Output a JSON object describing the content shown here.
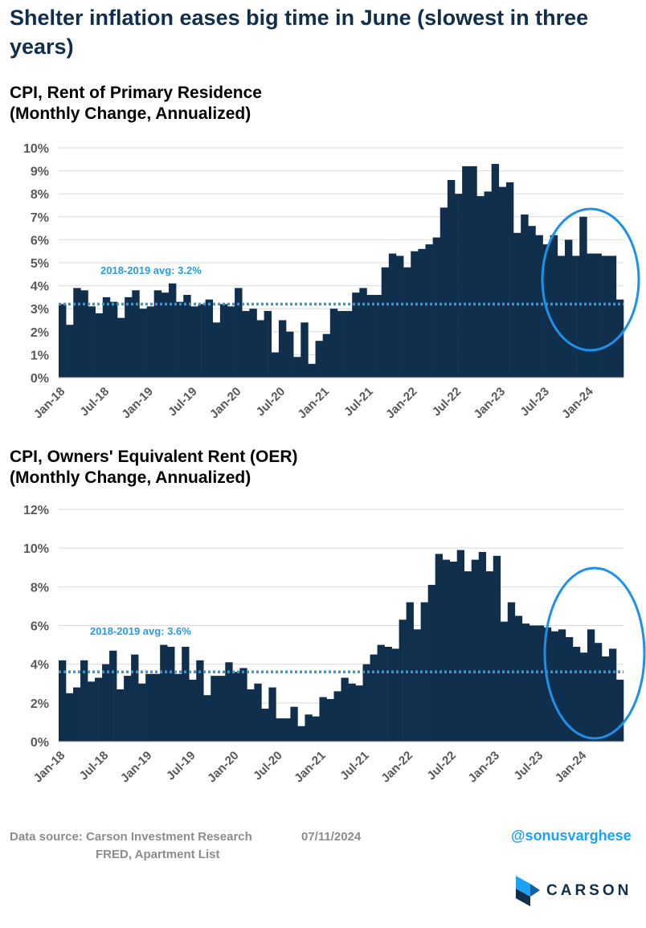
{
  "page": {
    "headline": "Shelter inflation eases big time in June (slowest in three years)",
    "source_label": "Data source: Carson Investment Research",
    "source_line2": "FRED, Apartment List",
    "date": "07/11/2024",
    "handle": "@sonusvarghese",
    "logo_text": "CARSON",
    "colors": {
      "bars": "#0f2f4d",
      "avg_line": "#2a9be0",
      "circle": "#1e90e8",
      "headline": "#0f2f4d"
    }
  },
  "chart_data": [
    {
      "type": "bar",
      "title_line1": "CPI, Rent of Primary Residence",
      "title_line2": "(Monthly Change, Annualized)",
      "ylim": [
        0,
        10
      ],
      "yticks": [
        0,
        1,
        2,
        3,
        4,
        5,
        6,
        7,
        8,
        9,
        10
      ],
      "ytick_labels": [
        "0%",
        "1%",
        "2%",
        "3%",
        "4%",
        "5%",
        "6%",
        "7%",
        "8%",
        "9%",
        "10%"
      ],
      "x_start": "Jan-18",
      "xtick_labels": [
        "Jan-18",
        "Jul-18",
        "Jan-19",
        "Jul-19",
        "Jan-20",
        "Jul-20",
        "Jan-21",
        "Jul-21",
        "Jan-22",
        "Jul-22",
        "Jan-23",
        "Jul-23",
        "Jan-24"
      ],
      "values": [
        3.2,
        2.3,
        3.9,
        3.8,
        3.1,
        2.8,
        3.5,
        3.3,
        2.6,
        3.5,
        3.8,
        3.0,
        3.1,
        3.8,
        3.7,
        4.1,
        3.3,
        3.6,
        3.1,
        3.2,
        3.4,
        2.4,
        3.2,
        3.1,
        3.9,
        2.9,
        3.0,
        2.5,
        2.9,
        1.1,
        2.5,
        2.0,
        0.9,
        2.4,
        0.6,
        1.6,
        1.9,
        3.0,
        2.9,
        2.9,
        3.7,
        3.9,
        3.6,
        3.6,
        4.8,
        5.4,
        5.3,
        4.8,
        5.5,
        5.6,
        5.8,
        6.1,
        7.4,
        8.6,
        8.0,
        9.2,
        9.2,
        7.9,
        8.1,
        9.3,
        8.3,
        8.5,
        6.3,
        7.1,
        6.6,
        6.2,
        5.8,
        6.2,
        5.3,
        6.0,
        5.3,
        7.0,
        5.4,
        5.4,
        5.3,
        5.3,
        3.4
      ],
      "avg": 3.2,
      "avg_label": "2018-2019 avg: 3.2%"
    },
    {
      "type": "bar",
      "title_line1": "CPI, Owners' Equivalent Rent (OER)",
      "title_line2": "(Monthly Change, Annualized)",
      "ylim": [
        0,
        12
      ],
      "yticks": [
        0,
        2,
        4,
        6,
        8,
        10,
        12
      ],
      "ytick_labels": [
        "0%",
        "2%",
        "4%",
        "6%",
        "8%",
        "10%",
        "12%"
      ],
      "x_start": "Jan-18",
      "xtick_labels": [
        "Jan-18",
        "Jul-18",
        "Jan-19",
        "Jul-19",
        "Jan-20",
        "Jul-20",
        "Jan-21",
        "Jul-21",
        "Jan-22",
        "Jul-22",
        "Jan-23",
        "Jul-23",
        "Jan-24"
      ],
      "values": [
        4.2,
        2.5,
        2.8,
        4.2,
        3.1,
        3.3,
        4.0,
        4.7,
        2.7,
        3.4,
        4.5,
        3.0,
        3.5,
        3.5,
        5.0,
        4.9,
        3.5,
        4.9,
        3.2,
        4.2,
        2.4,
        3.4,
        3.4,
        4.1,
        3.6,
        3.8,
        2.7,
        3.0,
        1.7,
        2.8,
        1.2,
        1.2,
        1.8,
        0.8,
        1.4,
        1.3,
        2.3,
        2.2,
        2.6,
        3.3,
        3.0,
        2.9,
        4.0,
        4.5,
        5.0,
        4.9,
        4.8,
        6.3,
        7.2,
        5.8,
        7.2,
        8.1,
        9.7,
        9.4,
        9.3,
        9.9,
        8.8,
        9.4,
        9.8,
        8.8,
        9.6,
        6.2,
        7.2,
        6.5,
        6.1,
        6.0,
        6.0,
        5.9,
        5.7,
        5.8,
        5.4,
        4.9,
        4.6,
        5.8,
        5.1,
        4.4,
        4.8,
        3.2
      ],
      "avg": 3.6,
      "avg_label": "2018-2019 avg: 3.6%"
    }
  ]
}
